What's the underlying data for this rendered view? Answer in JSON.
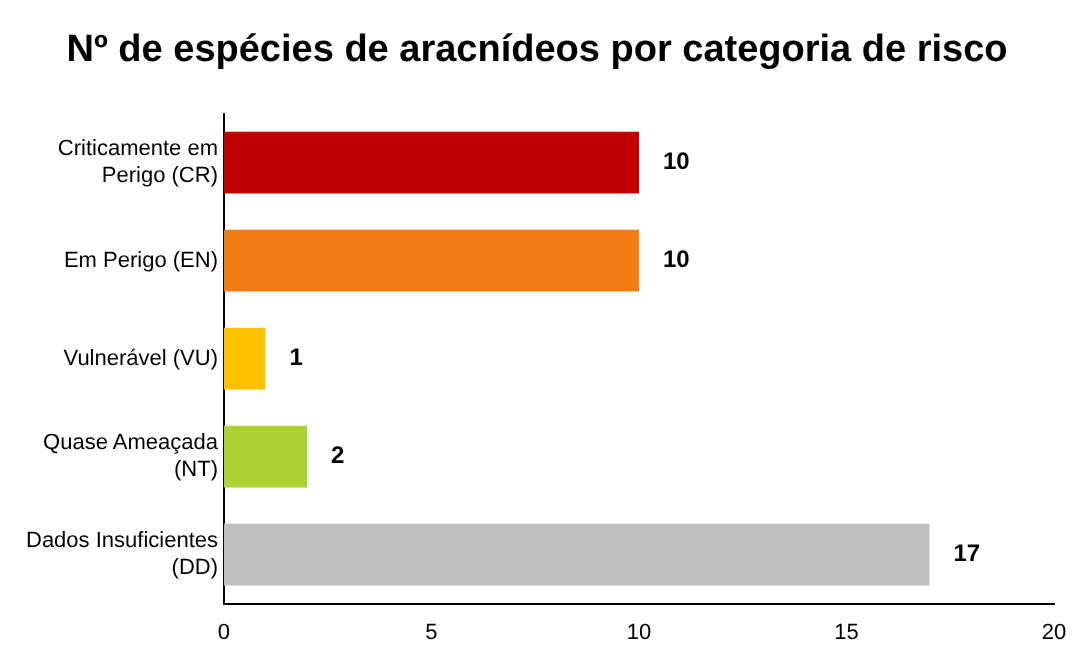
{
  "chart_data": {
    "type": "bar",
    "orientation": "horizontal",
    "title": "Nº de espécies de aracnídeos por categoria de risco",
    "categories": [
      "Criticamente em Perigo (CR)",
      "Em Perigo (EN)",
      "Vulnerável (VU)",
      "Quase Ameaçada (NT)",
      "Dados Insuficientes (DD)"
    ],
    "values": [
      10,
      10,
      1,
      2,
      17
    ],
    "colors": [
      "#c00000",
      "#f57c14",
      "#ffc000",
      "#aad232",
      "#bfbfbf"
    ],
    "xlim": [
      0,
      20
    ],
    "xticks": [
      0,
      5,
      10,
      15,
      20
    ],
    "grid": false,
    "legend": false,
    "data_labels": true
  }
}
